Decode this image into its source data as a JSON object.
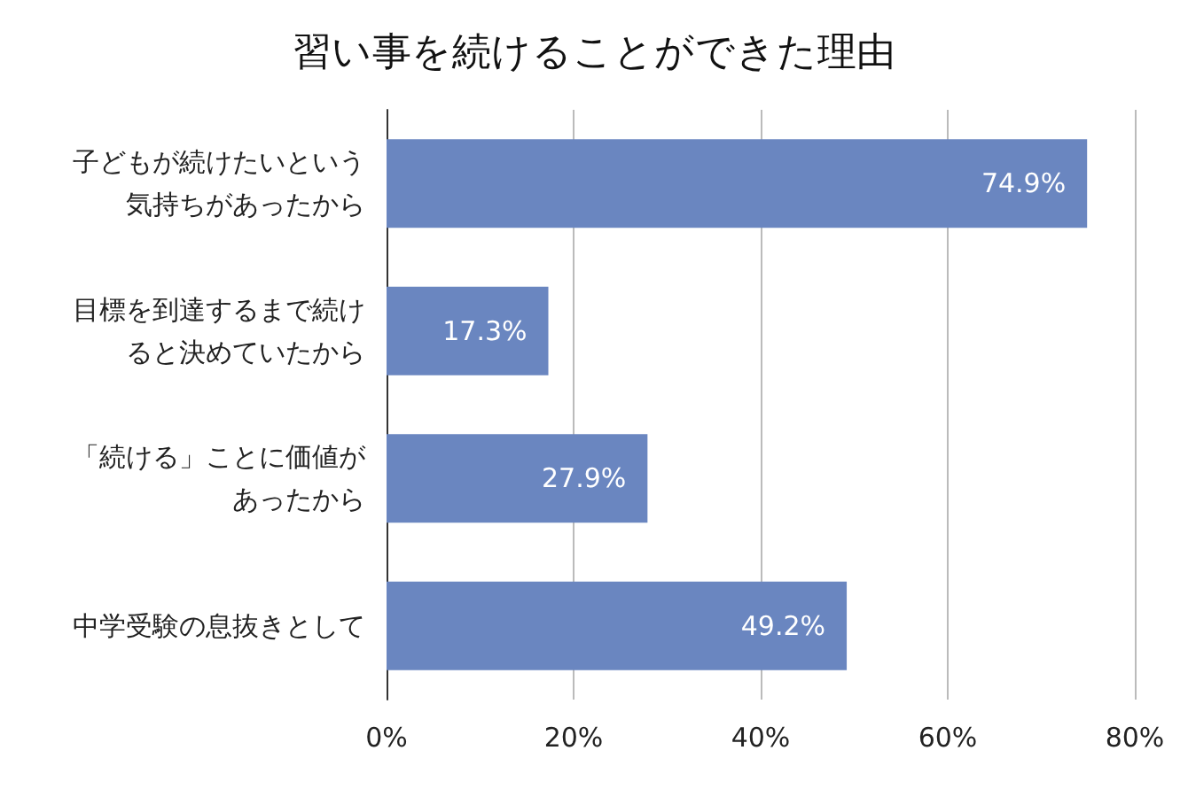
{
  "chart_data": {
    "type": "bar",
    "orientation": "horizontal",
    "title": "習い事を続けることができた理由",
    "categories": [
      "子どもが続けたいという気持ちがあったから",
      "目標を到達するまで続けると決めていたから",
      "「続ける」ことに価値があったから",
      "中学受験の息抜きとして"
    ],
    "values": [
      74.9,
      17.3,
      27.9,
      49.2
    ],
    "value_labels": [
      "74.9%",
      "17.3%",
      "27.9%",
      "49.2%"
    ],
    "color": "#6a86c0",
    "xlim": [
      0,
      80
    ],
    "xticks": [
      {
        "value": 0,
        "label": "0%"
      },
      {
        "value": 20,
        "label": "20%"
      },
      {
        "value": 40,
        "label": "40%"
      },
      {
        "value": 60,
        "label": "60%"
      },
      {
        "value": 80,
        "label": "80%"
      }
    ],
    "grid": "x"
  }
}
